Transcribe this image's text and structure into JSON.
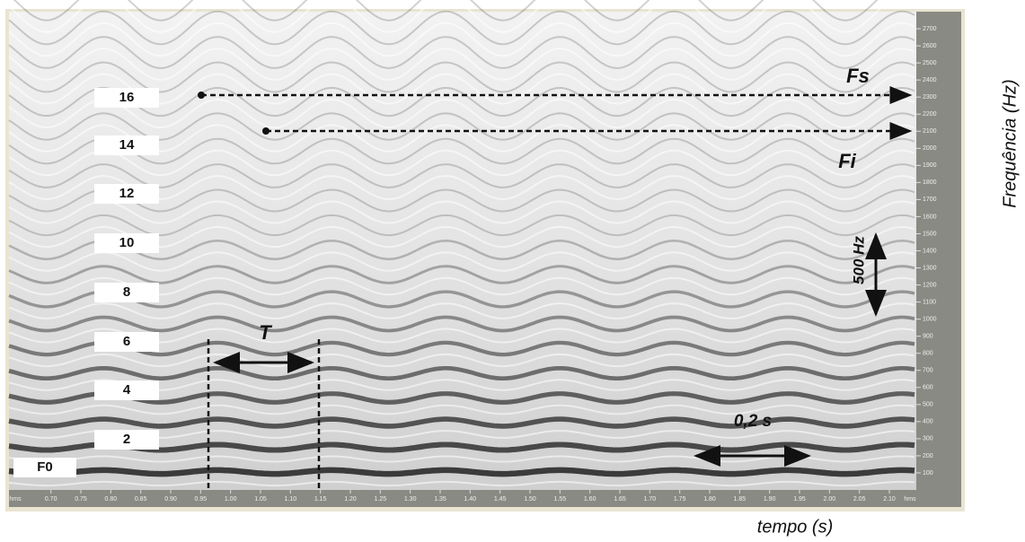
{
  "chart_data": {
    "type": "spectrogram",
    "x_label": "tempo (s)",
    "y_label": "Frequência (Hz)",
    "x_unit_label": "hms",
    "xlim": [
      0.63,
      2.145
    ],
    "ylim": [
      0,
      2800
    ],
    "xticks": [
      {
        "value": 0.7,
        "label": "0.70"
      },
      {
        "value": 0.75,
        "label": "0.75"
      },
      {
        "value": 0.8,
        "label": "0.80"
      },
      {
        "value": 0.85,
        "label": "0.85"
      },
      {
        "value": 0.9,
        "label": "0.90"
      },
      {
        "value": 0.95,
        "label": "0.95"
      },
      {
        "value": 1.0,
        "label": "1.00"
      },
      {
        "value": 1.05,
        "label": "1.05"
      },
      {
        "value": 1.1,
        "label": "1.10"
      },
      {
        "value": 1.15,
        "label": "1.15"
      },
      {
        "value": 1.2,
        "label": "1.20"
      },
      {
        "value": 1.25,
        "label": "1.25"
      },
      {
        "value": 1.3,
        "label": "1.30"
      },
      {
        "value": 1.35,
        "label": "1.35"
      },
      {
        "value": 1.4,
        "label": "1.40"
      },
      {
        "value": 1.45,
        "label": "1.45"
      },
      {
        "value": 1.5,
        "label": "1.50"
      },
      {
        "value": 1.55,
        "label": "1.55"
      },
      {
        "value": 1.6,
        "label": "1.60"
      },
      {
        "value": 1.65,
        "label": "1.65"
      },
      {
        "value": 1.7,
        "label": "1.70"
      },
      {
        "value": 1.75,
        "label": "1.75"
      },
      {
        "value": 1.8,
        "label": "1.80"
      },
      {
        "value": 1.85,
        "label": "1.85"
      },
      {
        "value": 1.9,
        "label": "1.90"
      },
      {
        "value": 1.95,
        "label": "1.95"
      },
      {
        "value": 2.0,
        "label": "2.00"
      },
      {
        "value": 2.05,
        "label": "2.05"
      },
      {
        "value": 2.1,
        "label": "2.10"
      }
    ],
    "yticks": [
      100,
      200,
      300,
      400,
      500,
      600,
      700,
      800,
      900,
      1000,
      1100,
      1200,
      1300,
      1400,
      1500,
      1600,
      1700,
      1800,
      1900,
      2000,
      2100,
      2200,
      2300,
      2400,
      2500,
      2600,
      2700
    ],
    "harmonic_labels": [
      "16",
      "14",
      "12",
      "10",
      "8",
      "6",
      "4",
      "2",
      "F0"
    ],
    "annotations": {
      "fs": "Fs",
      "fi": "Fi",
      "range": "500 Hz",
      "period": "T",
      "duration": "0,2 s"
    }
  }
}
